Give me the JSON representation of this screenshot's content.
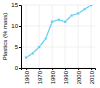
{
  "chart_data": {
    "type": "line",
    "ylabel": "Plastics (% mass)",
    "x": [
      1960,
      1965,
      1970,
      1975,
      1980,
      1985,
      1990,
      1995,
      2000,
      2005,
      2010
    ],
    "values": [
      2.5,
      3.5,
      5.0,
      7.0,
      11.0,
      11.5,
      11.0,
      12.5,
      13.0,
      14.0,
      15.0
    ],
    "color": "#66ccee",
    "marker": "square",
    "xlim": [
      1956,
      2013
    ],
    "xticks": [
      1960,
      1970,
      1980,
      1990,
      2000,
      2010
    ],
    "ylim": [
      0,
      15
    ],
    "yticks": [
      0,
      5,
      10,
      15
    ],
    "grid": true
  }
}
